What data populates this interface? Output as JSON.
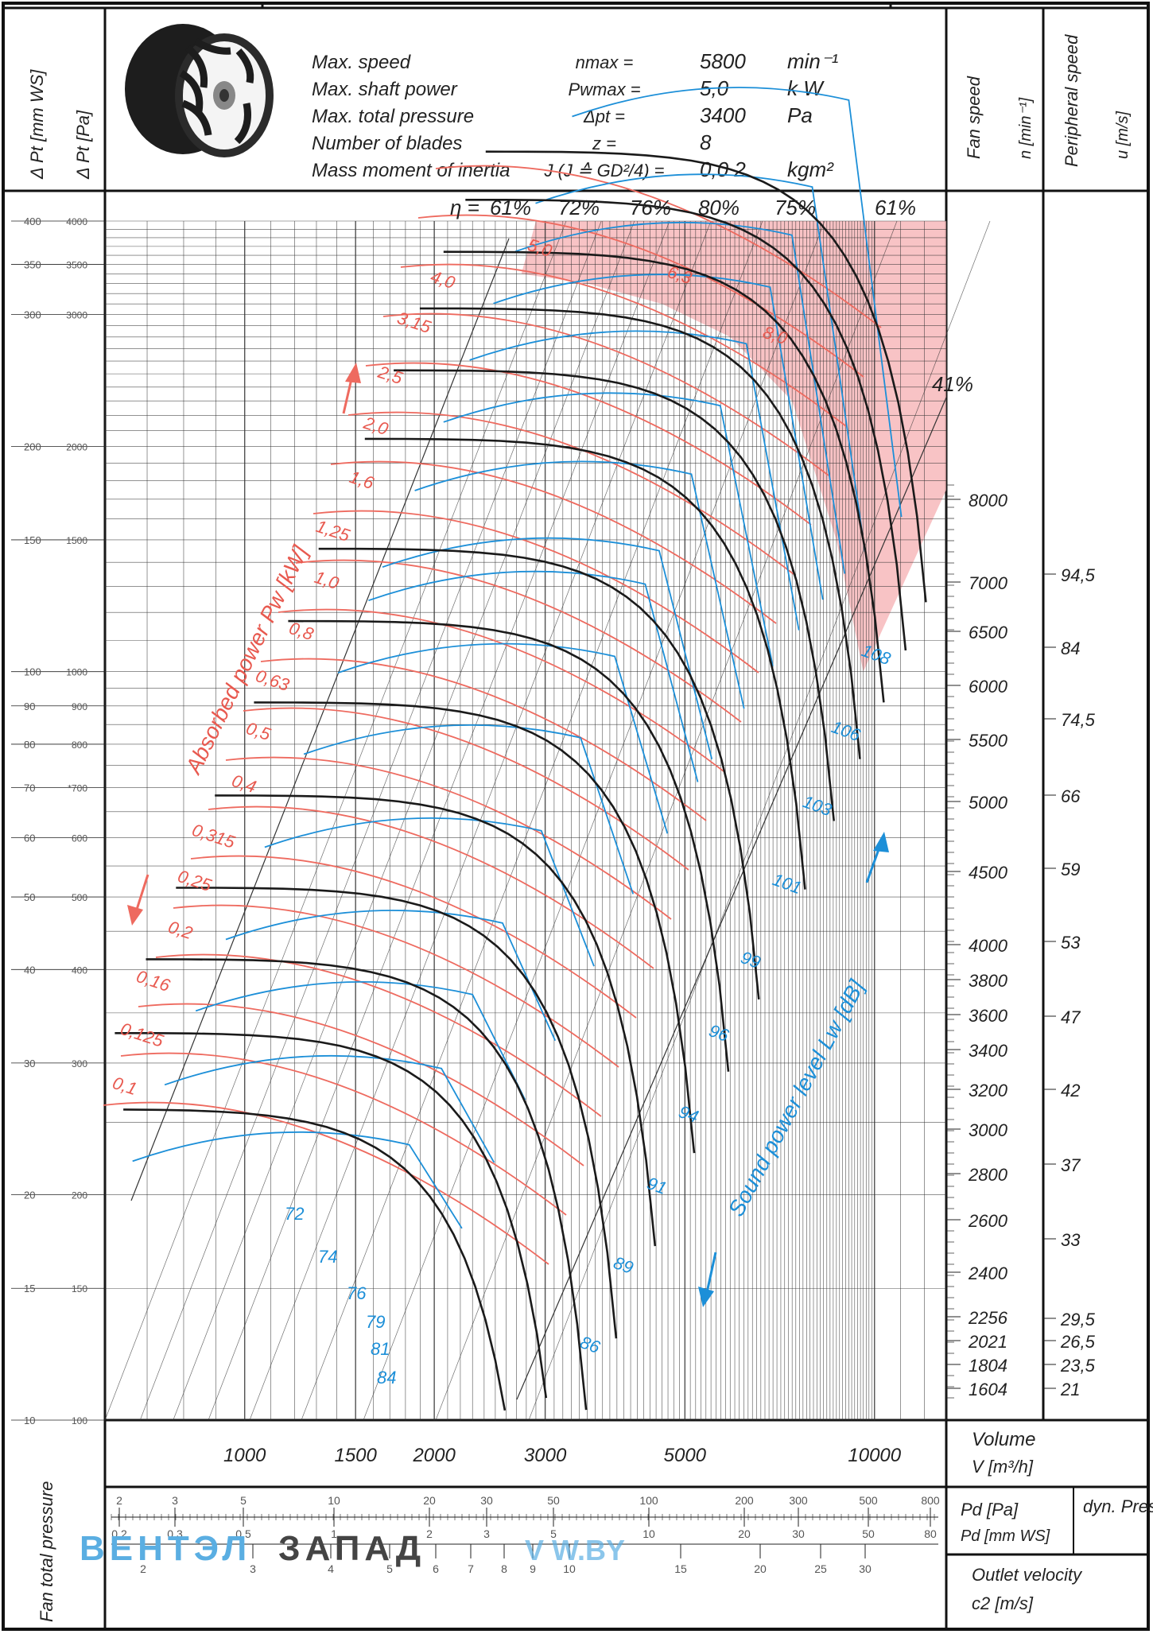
{
  "header": {
    "label_dpt_mmws": "Δ Pt [mm WS]",
    "label_dpt_pa": "Δ Pt [Pa]",
    "specs": [
      {
        "name": "Max. speed",
        "symbol": "nmax =",
        "value": "5800",
        "unit": "min⁻¹"
      },
      {
        "name": "Max. shaft power",
        "symbol": "Pwmax =",
        "value": "5,0",
        "unit": "k W"
      },
      {
        "name": "Max. total pressure",
        "symbol": "Δpt =",
        "value": "3400",
        "unit": "Pa"
      },
      {
        "name": "Number of blades",
        "symbol": "z =",
        "value": "8",
        "unit": ""
      },
      {
        "name": "Mass moment of inertia",
        "symbol": "J (J ≙ GD²/4) =",
        "value": "0,0 2",
        "unit": "kgm²"
      }
    ],
    "fan_speed_label": "Fan speed",
    "fan_speed_unit": "n [min⁻¹]",
    "peripheral_label": "Peripheral speed",
    "peripheral_unit": "u [m/s]"
  },
  "footer": {
    "volume_label": "Volume",
    "volume_unit": "V [m³/h]",
    "pd_pa": "Pd [Pa]",
    "pd_mmws": "Pd [mm WS]",
    "dyn_press": "dyn. Press.",
    "outlet_label": "Outlet velocity",
    "outlet_unit": "c2 [m/s]",
    "fan_total_pressure": "Fan total pressure",
    "watermark_blue": "ВЕНТЭЛ",
    "watermark_dark": "ЗАПАД",
    "watermark_url": "V W.BY"
  },
  "chart_data": {
    "type": "line",
    "x_scale": "log",
    "y_scale": "log",
    "xlabel": "Volume V [m³/h]",
    "ylabel": "Δ Pt [Pa]",
    "xlim": [
      600,
      13000
    ],
    "ylim": [
      100,
      4000
    ],
    "x_ticks": [
      1000,
      1500,
      2000,
      3000,
      5000,
      10000
    ],
    "x_tick_labels": [
      "1000",
      "1500",
      "2000",
      "3000",
      "5000",
      "10000"
    ],
    "y_ticks_pa": [
      100,
      150,
      200,
      300,
      400,
      500,
      600,
      700,
      800,
      900,
      1000,
      1500,
      2000,
      3000,
      3500,
      4000
    ],
    "y_tick_labels_pa": [
      "100",
      "150",
      "200",
      "300",
      "400",
      "500",
      "600",
      "*700",
      "800",
      "900",
      "1000",
      "1500",
      "2000",
      "3000",
      "3500",
      "4000"
    ],
    "y_ticks_mmws": [
      10,
      15,
      20,
      30,
      40,
      50,
      60,
      70,
      80,
      90,
      100,
      150,
      200,
      300,
      350,
      400
    ],
    "y_tick_labels_mmws": [
      "10",
      "15",
      "20",
      "30",
      "40",
      "50",
      "60",
      "70",
      "80",
      "90",
      "100",
      "150",
      "200",
      "300",
      "350",
      "400"
    ],
    "efficiency_label": "η =",
    "efficiency_labels": [
      "61%",
      "72%",
      "76%",
      "80%",
      "75%",
      "61%"
    ],
    "efficiency_right": "41%",
    "fan_speed_ticks": [
      "8000",
      "7000",
      "6500",
      "6000",
      "5500",
      "5000",
      "4500",
      "4000",
      "3800",
      "3600",
      "3400",
      "3200",
      "3000",
      "2800",
      "2600",
      "2400",
      "2256",
      "2021",
      "1804",
      "1604"
    ],
    "peripheral_speed_ticks": [
      "94,5",
      "84",
      "74,5",
      "66",
      "59",
      "53",
      "47",
      "42",
      "37",
      "33",
      "29,5",
      "26,5",
      "23,5",
      "21"
    ],
    "power_label": "Absorbed power Pw [kW]",
    "power_values": [
      "0,1",
      "0,125",
      "0,16",
      "0,2",
      "0,25",
      "0,315",
      "0,4",
      "0,5",
      "0,63",
      "0,8",
      "1,0",
      "1,25",
      "1,6",
      "2,0",
      "2,5",
      "3,15",
      "4,0",
      "5,0",
      "6,3",
      "8,0"
    ],
    "sound_label": "Sound power level Lw [dB]",
    "sound_values": [
      "72",
      "74",
      "76",
      "79",
      "81",
      "84",
      "86",
      "89",
      "91",
      "94",
      "96",
      "99",
      "101",
      "103",
      "106",
      "108"
    ],
    "pd_pa_ticks": [
      "2",
      "3",
      "5",
      "10",
      "20",
      "30",
      "50",
      "100",
      "200",
      "300",
      "500",
      "800"
    ],
    "pd_mmws_ticks": [
      "0,2",
      "0,3",
      "0,5",
      "1",
      "2",
      "3",
      "5",
      "10",
      "20",
      "30",
      "50",
      "80"
    ],
    "c2_ticks": [
      "2",
      "3",
      "4",
      "5",
      "6",
      "7",
      "8",
      "9",
      "10",
      "15",
      "20",
      "25",
      "30"
    ],
    "colors": {
      "speed_curve": "#1a1a1a",
      "power_curve": "#ee6a5f",
      "sound_curve": "#1c8fd8",
      "forbidden_zone": "#f7b9bb",
      "grid": "#333333"
    }
  }
}
